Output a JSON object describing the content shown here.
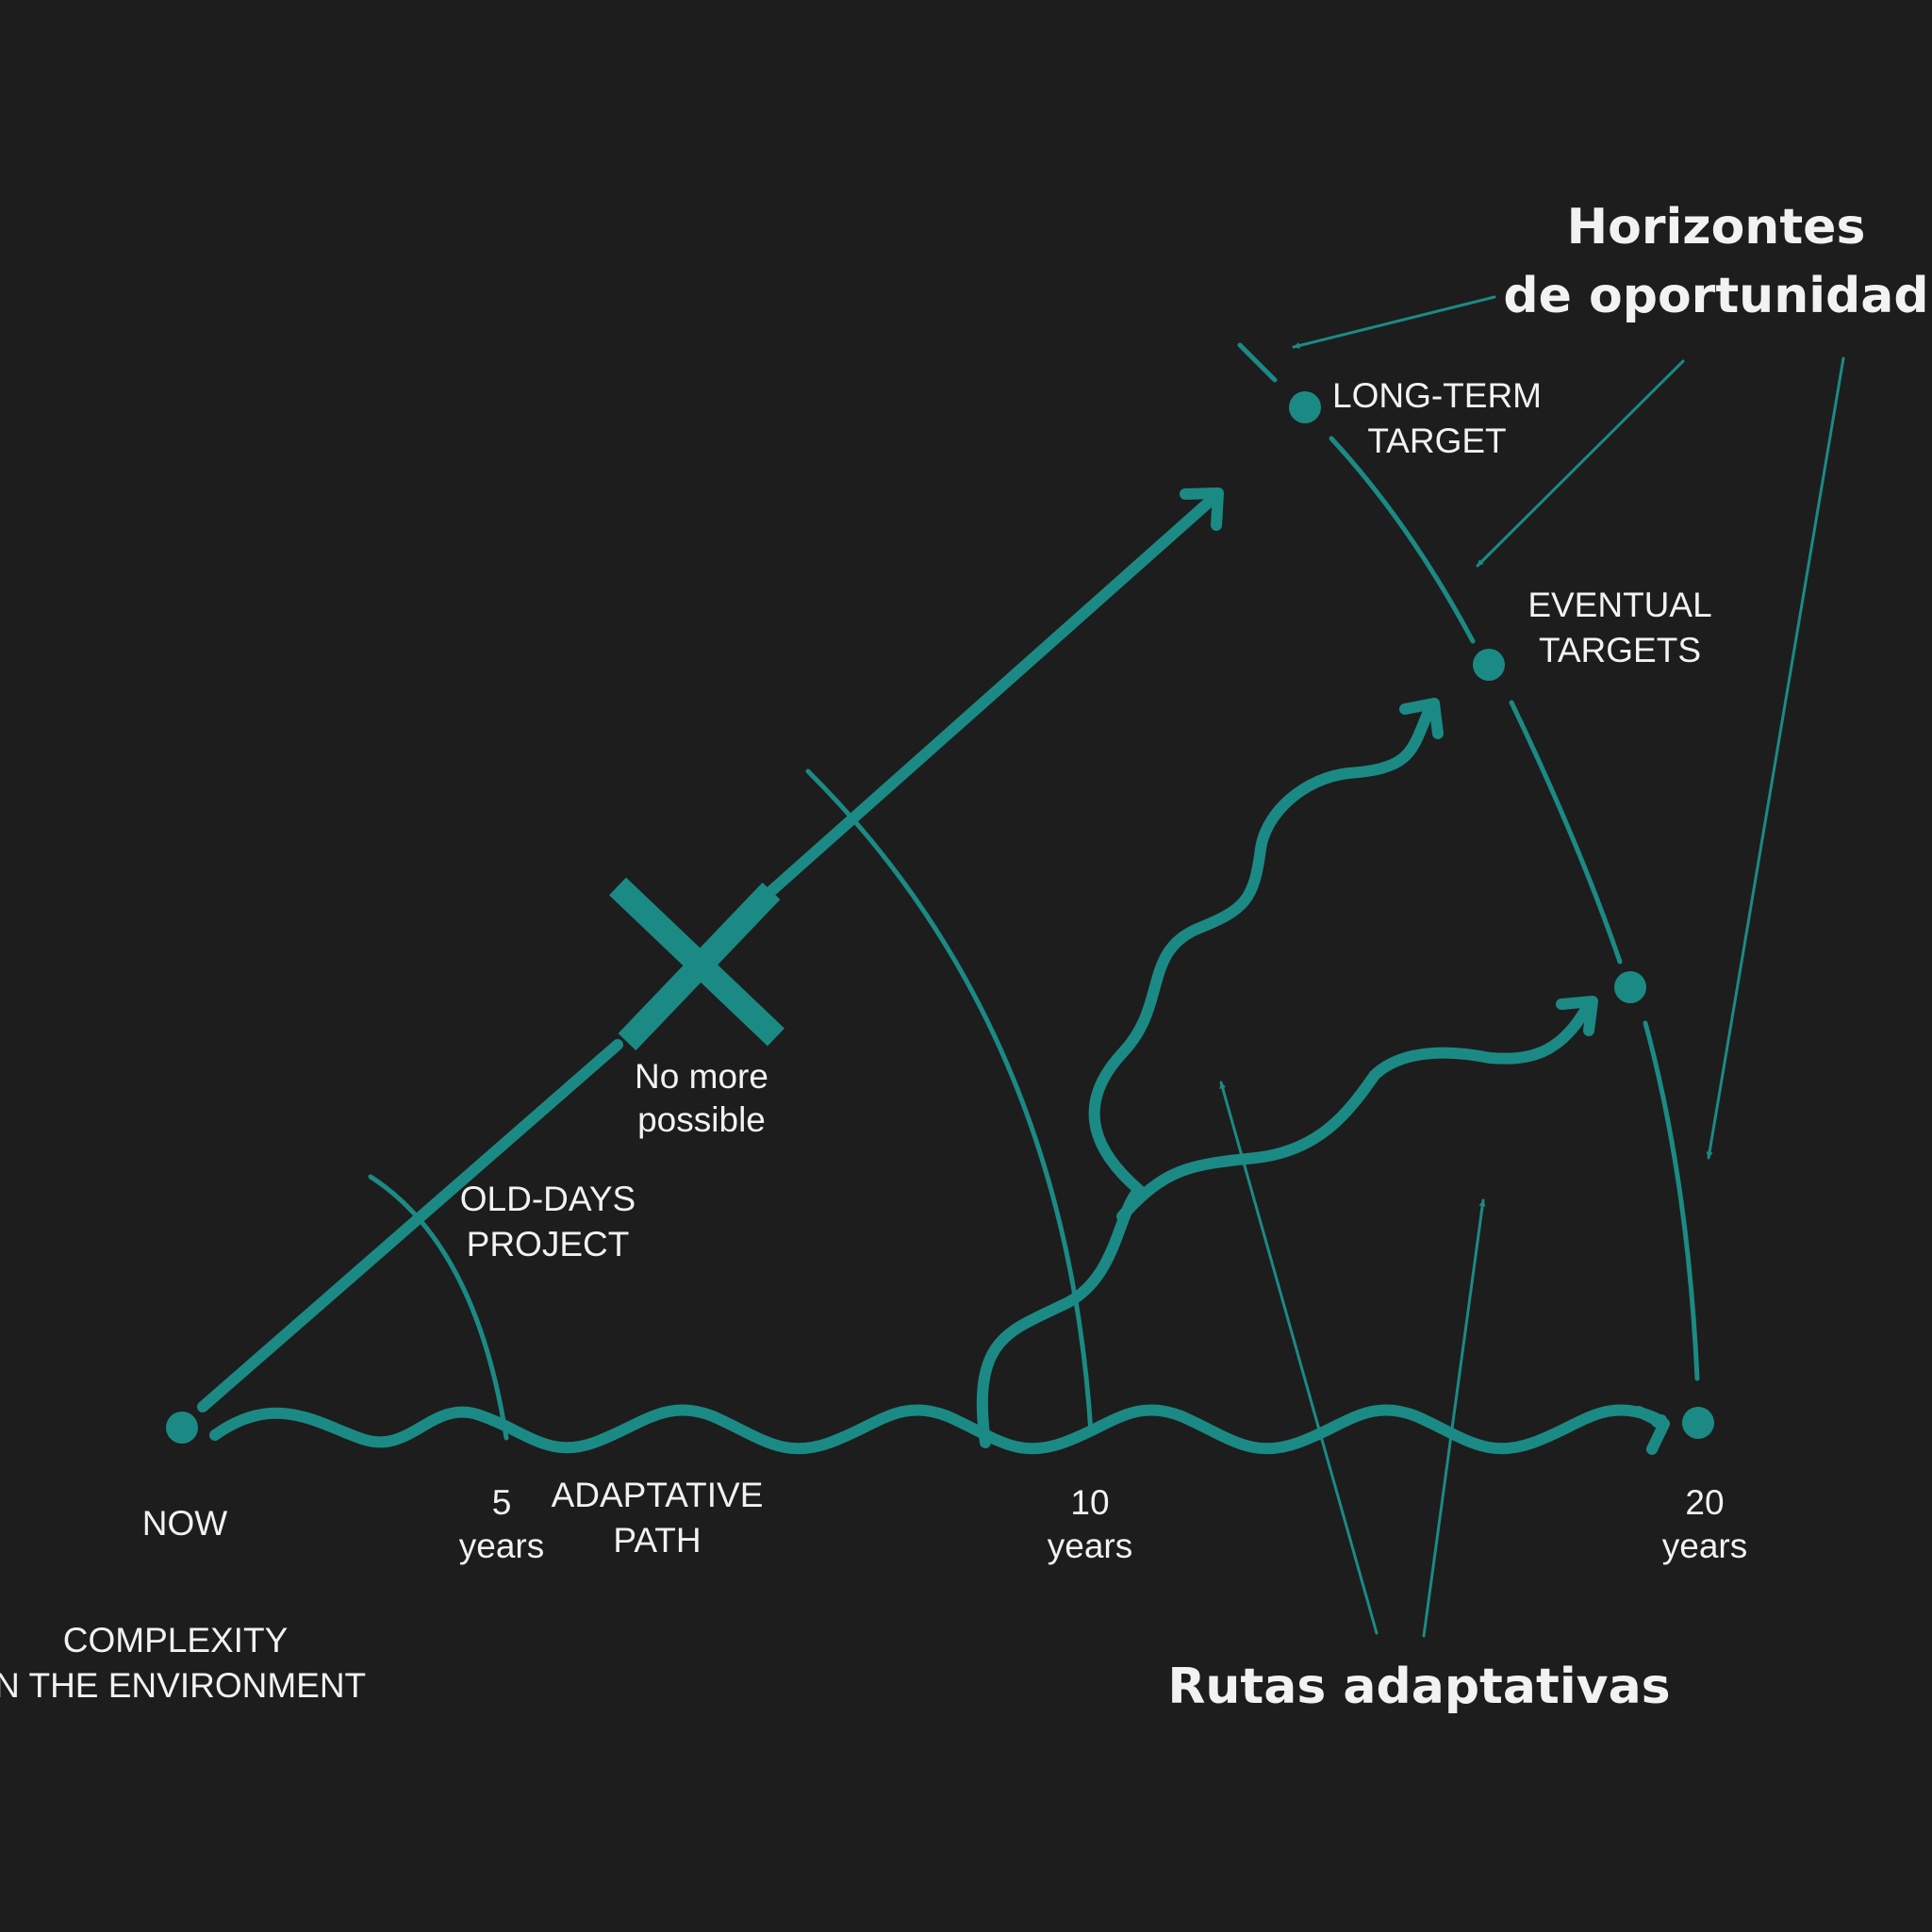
{
  "colors": {
    "background": "#1d1d1d",
    "accent": "#1b8a85",
    "text": "#f2f2f2"
  },
  "titles": {
    "horizons_line1": "Horizontes",
    "horizons_line2": "de oportunidad",
    "routes": "Rutas adaptativas"
  },
  "labels": {
    "long_term_1": "LONG-TERM",
    "long_term_2": "TARGET",
    "eventual_1": "EVENTUAL",
    "eventual_2": "TARGETS",
    "no_more_1": "No more",
    "no_more_2": "possible",
    "old_days_1": "OLD-DAYS",
    "old_days_2": "PROJECT",
    "now": "NOW",
    "five_num": "5",
    "five_unit": "years",
    "adaptive_1": "ADAPTATIVE",
    "adaptive_2": "PATH",
    "ten_num": "10",
    "ten_unit": "years",
    "twenty_num": "20",
    "twenty_unit": "years",
    "complexity_1": "COMPLEXITY",
    "complexity_2": "IN THE ENVIRONMENT"
  },
  "icons": {
    "blocked": "x-mark-icon",
    "target": "dot-icon",
    "direction": "arrowhead-icon"
  }
}
